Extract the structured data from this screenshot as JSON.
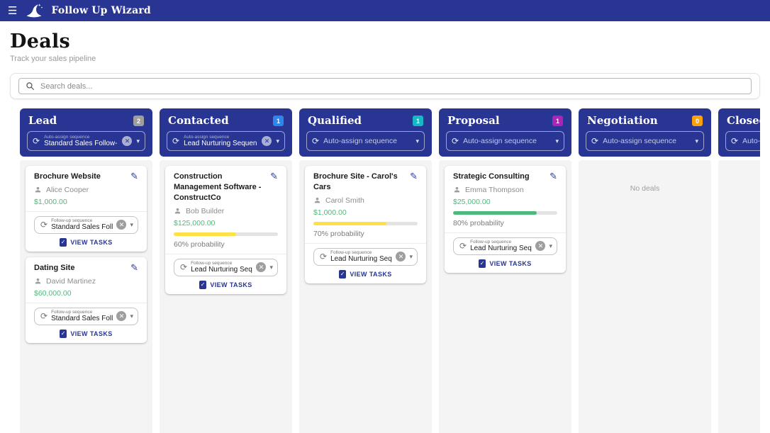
{
  "app": {
    "title": "Follow Up Wizard"
  },
  "page": {
    "title": "Deals",
    "subtitle": "Track your sales pipeline"
  },
  "search": {
    "placeholder": "Search deals..."
  },
  "colors": {
    "accent": "#283593",
    "amount_green": "#4dba7c",
    "bar_track": "#e3e3e3"
  },
  "board": {
    "autoassign_label": "Auto-assign sequence",
    "followup_label": "Follow-up sequence",
    "view_tasks_label": "VIEW TASKS",
    "empty_label": "No deals",
    "columns": [
      {
        "title": "Lead",
        "count": "2",
        "badge_color": "#9e9e9e",
        "autoassign_value": "Standard Sales Follow-u...",
        "deals": [
          {
            "title": "Brochure Website",
            "contact": "Alice Cooper",
            "amount": "$1,000.00",
            "probability": null,
            "probability_label": null,
            "bar_color": null,
            "sequence": "Standard Sales Follow-..."
          },
          {
            "title": "Dating Site",
            "contact": "David Martinez",
            "amount": "$60,000.00",
            "probability": null,
            "probability_label": null,
            "bar_color": null,
            "sequence": "Standard Sales Follow-..."
          }
        ]
      },
      {
        "title": "Contacted",
        "count": "1",
        "badge_color": "#2e86eb",
        "autoassign_value": "Lead Nurturing Sequence",
        "deals": [
          {
            "title": "Construction Management Software - ConstructCo",
            "contact": "Bob Builder",
            "amount": "$125,000.00",
            "probability": 60,
            "probability_label": "60% probability",
            "bar_color": "#ffe146",
            "sequence": "Lead Nurturing Sequence"
          }
        ]
      },
      {
        "title": "Qualified",
        "count": "1",
        "badge_color": "#17b8c6",
        "autoassign_value": null,
        "deals": [
          {
            "title": "Brochure Site - Carol's Cars",
            "contact": "Carol Smith",
            "amount": "$1,000.00",
            "probability": 70,
            "probability_label": "70% probability",
            "bar_color": "#ffe146",
            "sequence": "Lead Nurturing Sequence"
          }
        ]
      },
      {
        "title": "Proposal",
        "count": "1",
        "badge_color": "#ac24b4",
        "autoassign_value": null,
        "deals": [
          {
            "title": "Strategic Consulting",
            "contact": "Emma Thompson",
            "amount": "$25,000.00",
            "probability": 80,
            "probability_label": "80% probability",
            "bar_color": "#4dba7c",
            "sequence": "Lead Nurturing Sequence"
          }
        ]
      },
      {
        "title": "Negotiation",
        "count": "0",
        "badge_color": "#f9a00a",
        "autoassign_value": null,
        "deals": []
      },
      {
        "title": "Closed (won)",
        "count": null,
        "badge_color": null,
        "autoassign_value": null,
        "deals": []
      }
    ]
  }
}
